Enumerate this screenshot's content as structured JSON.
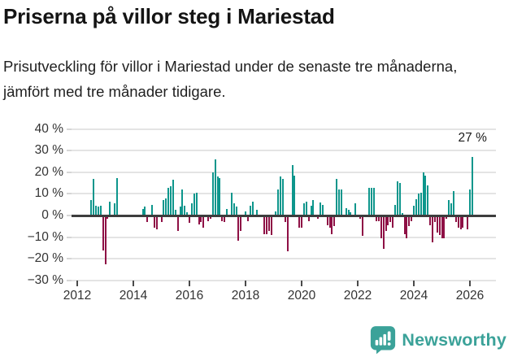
{
  "header": {
    "title": "Priserna på villor steg i Mariestad",
    "subtitle": "Prisutveckling för villor i Mariestad under de senaste tre månaderna, jämfört med tre månader tidigare."
  },
  "chart_data": {
    "type": "bar",
    "title": "Priserna på villor steg i Mariestad",
    "xlabel": "",
    "ylabel": "",
    "x_start": "2012-07",
    "x_unit": "month",
    "values": [
      7,
      17,
      4.5,
      4,
      4.5,
      -16,
      -22.5,
      -1.5,
      6.5,
      0,
      5.5,
      17.5,
      0,
      0,
      0,
      0,
      0,
      0,
      0,
      0,
      0,
      0,
      3,
      4,
      -3,
      0,
      5,
      -5.5,
      -6.5,
      0,
      -3,
      7,
      8,
      13,
      13.5,
      16.5,
      2.5,
      -7,
      4,
      12,
      4.5,
      1.5,
      -3.5,
      5.5,
      10,
      10.5,
      -4,
      -3,
      -5.5,
      0,
      -2.5,
      -1.5,
      20,
      26,
      18,
      17.5,
      -2.5,
      -3,
      3,
      0,
      10.5,
      5.5,
      4,
      -11.5,
      -7,
      0,
      2,
      -2.5,
      4.5,
      6.5,
      0,
      2.5,
      0,
      0,
      -8.5,
      -8.5,
      -7,
      -9,
      0,
      2,
      12,
      18,
      17,
      -3,
      -16.5,
      0,
      23.5,
      18.5,
      0,
      -5.5,
      -5.5,
      5.5,
      6.5,
      -2.5,
      4.5,
      7,
      0,
      -1.5,
      6,
      5,
      0,
      -4.5,
      -5.5,
      -8.5,
      -5,
      17,
      12,
      12,
      0,
      3.5,
      2.5,
      1.5,
      0,
      5.5,
      0,
      -1.5,
      -9.5,
      0,
      0,
      13,
      13,
      13,
      -2.5,
      -2.5,
      -10.5,
      -15.5,
      -7,
      -4.5,
      -3,
      -5.5,
      5,
      16,
      15,
      1,
      -8.5,
      -10.5,
      -5,
      -2.5,
      4.5,
      7.5,
      10,
      10.5,
      20,
      18.5,
      14,
      -4.5,
      -12.5,
      -3,
      -8,
      -9,
      -10.5,
      -10.5,
      -1.5,
      7,
      5.5,
      11.5,
      -3,
      -5.5,
      -6.5,
      -5.5,
      0,
      -6.5,
      12,
      27
    ],
    "xticklabels": [
      "2012",
      "2014",
      "2016",
      "2018",
      "2020",
      "2022",
      "2024",
      "2026"
    ],
    "ytick_values": [
      40,
      30,
      20,
      10,
      0,
      -10,
      -20,
      -30
    ],
    "ytick_labels": [
      "40 %",
      "30 %",
      "20 %",
      "10 %",
      "0 %",
      "−10 %",
      "−20 %",
      "−30 %"
    ],
    "ylim": [
      -30,
      40
    ],
    "grid": true,
    "legend": "none",
    "annotation": {
      "text": "27 %",
      "value": 27
    },
    "colors": {
      "positive": "#0D968C",
      "negative": "#8E1045",
      "grid": "#e4e4e4",
      "zero_line": "#3d3d3d",
      "axis_text": "#333333"
    }
  },
  "footer": {
    "brand": "Newsworthy",
    "brand_color": "#3BA299",
    "logo_icon": "newsworthy-pin-icon"
  }
}
